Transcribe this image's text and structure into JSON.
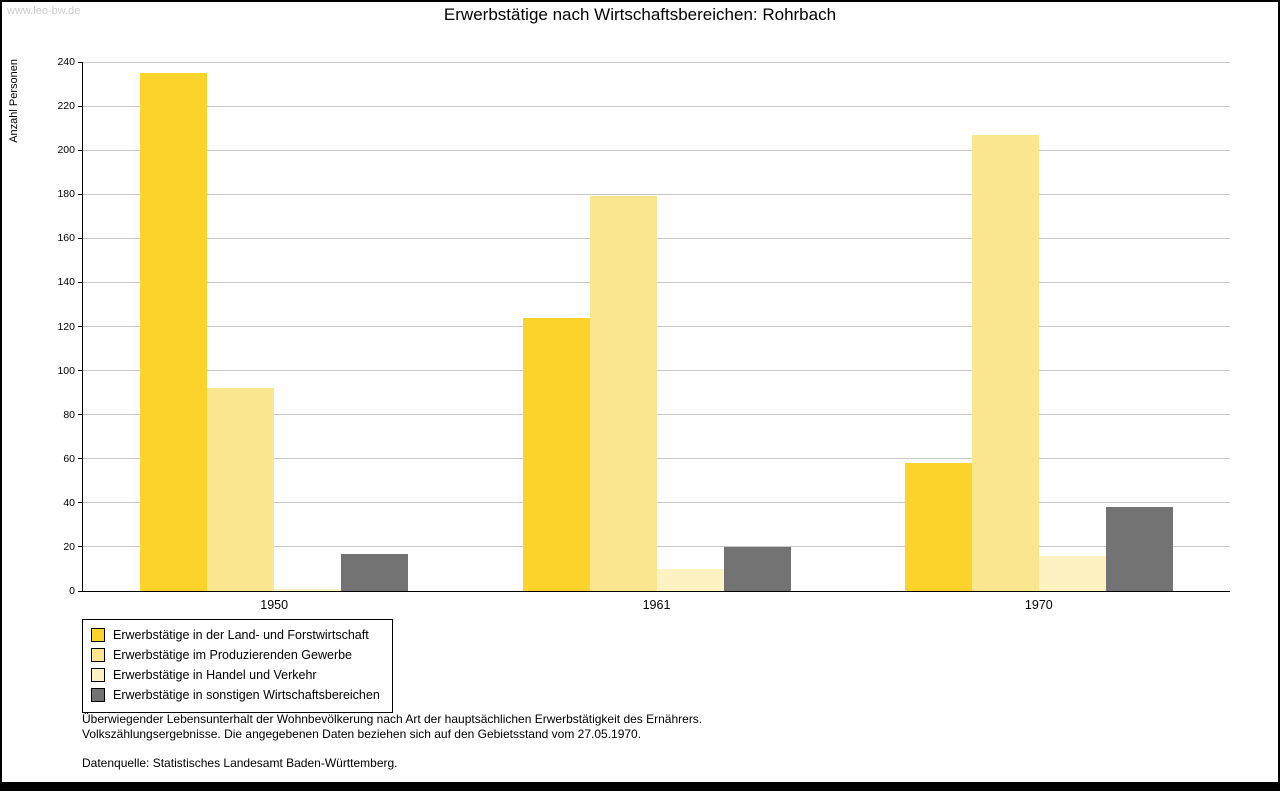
{
  "watermark": "www.leo-bw.de",
  "title": "Erwerbstätige nach Wirtschaftsbereichen: Rohrbach",
  "chart_data": {
    "type": "bar",
    "categories": [
      "1950",
      "1961",
      "1970"
    ],
    "series": [
      {
        "name": "Erwerbstätige in der Land- und Forstwirtschaft",
        "color": "#FBD32B",
        "values": [
          235,
          124,
          58
        ]
      },
      {
        "name": "Erwerbstätige im Produzierenden Gewerbe",
        "color": "#FAE68F",
        "values": [
          92,
          179,
          207
        ]
      },
      {
        "name": "Erwerbstätige in Handel und Verkehr",
        "color": "#FCF2C2",
        "values": [
          1,
          10,
          16
        ]
      },
      {
        "name": "Erwerbstätige in sonstigen Wirtschaftsbereichen",
        "color": "#737373",
        "values": [
          17,
          20,
          38
        ]
      }
    ],
    "title": "Erwerbstätige nach Wirtschaftsbereichen: Rohrbach",
    "xlabel": "",
    "ylabel": "Anzahl Personen",
    "ylim": [
      0,
      240
    ],
    "ytick_step": 20,
    "grid": true,
    "legend_position": "bottom-left"
  },
  "footnotes": [
    "Überwiegender Lebensunterhalt der Wohnbevölkerung nach Art der hauptsächlichen Erwerbstätigkeit des Ernährers.",
    "Volkszählungsergebnisse. Die angegebenen Daten beziehen sich auf den Gebietsstand vom 27.05.1970.",
    "Datenquelle: Statistisches Landesamt Baden-Württemberg."
  ]
}
